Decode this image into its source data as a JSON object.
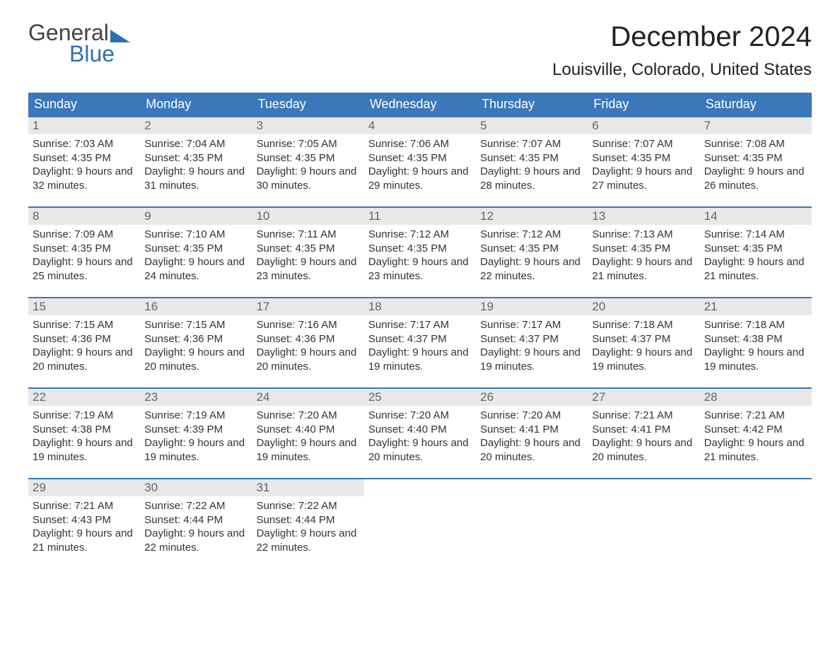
{
  "brand": {
    "line1": "General",
    "line2": "Blue"
  },
  "title": "December 2024",
  "location": "Louisville, Colorado, United States",
  "colors": {
    "header_bg": "#3a78b9",
    "header_text": "#ffffff",
    "daynum_bg": "#e8e8e8",
    "daynum_text": "#666666",
    "body_text": "#333333",
    "rule": "#3a78b9",
    "brand_blue": "#2d6fb4"
  },
  "days_of_week": [
    "Sunday",
    "Monday",
    "Tuesday",
    "Wednesday",
    "Thursday",
    "Friday",
    "Saturday"
  ],
  "weeks": [
    [
      {
        "n": "1",
        "sunrise": "7:03 AM",
        "sunset": "4:35 PM",
        "daylight": "9 hours and 32 minutes."
      },
      {
        "n": "2",
        "sunrise": "7:04 AM",
        "sunset": "4:35 PM",
        "daylight": "9 hours and 31 minutes."
      },
      {
        "n": "3",
        "sunrise": "7:05 AM",
        "sunset": "4:35 PM",
        "daylight": "9 hours and 30 minutes."
      },
      {
        "n": "4",
        "sunrise": "7:06 AM",
        "sunset": "4:35 PM",
        "daylight": "9 hours and 29 minutes."
      },
      {
        "n": "5",
        "sunrise": "7:07 AM",
        "sunset": "4:35 PM",
        "daylight": "9 hours and 28 minutes."
      },
      {
        "n": "6",
        "sunrise": "7:07 AM",
        "sunset": "4:35 PM",
        "daylight": "9 hours and 27 minutes."
      },
      {
        "n": "7",
        "sunrise": "7:08 AM",
        "sunset": "4:35 PM",
        "daylight": "9 hours and 26 minutes."
      }
    ],
    [
      {
        "n": "8",
        "sunrise": "7:09 AM",
        "sunset": "4:35 PM",
        "daylight": "9 hours and 25 minutes."
      },
      {
        "n": "9",
        "sunrise": "7:10 AM",
        "sunset": "4:35 PM",
        "daylight": "9 hours and 24 minutes."
      },
      {
        "n": "10",
        "sunrise": "7:11 AM",
        "sunset": "4:35 PM",
        "daylight": "9 hours and 23 minutes."
      },
      {
        "n": "11",
        "sunrise": "7:12 AM",
        "sunset": "4:35 PM",
        "daylight": "9 hours and 23 minutes."
      },
      {
        "n": "12",
        "sunrise": "7:12 AM",
        "sunset": "4:35 PM",
        "daylight": "9 hours and 22 minutes."
      },
      {
        "n": "13",
        "sunrise": "7:13 AM",
        "sunset": "4:35 PM",
        "daylight": "9 hours and 21 minutes."
      },
      {
        "n": "14",
        "sunrise": "7:14 AM",
        "sunset": "4:35 PM",
        "daylight": "9 hours and 21 minutes."
      }
    ],
    [
      {
        "n": "15",
        "sunrise": "7:15 AM",
        "sunset": "4:36 PM",
        "daylight": "9 hours and 20 minutes."
      },
      {
        "n": "16",
        "sunrise": "7:15 AM",
        "sunset": "4:36 PM",
        "daylight": "9 hours and 20 minutes."
      },
      {
        "n": "17",
        "sunrise": "7:16 AM",
        "sunset": "4:36 PM",
        "daylight": "9 hours and 20 minutes."
      },
      {
        "n": "18",
        "sunrise": "7:17 AM",
        "sunset": "4:37 PM",
        "daylight": "9 hours and 19 minutes."
      },
      {
        "n": "19",
        "sunrise": "7:17 AM",
        "sunset": "4:37 PM",
        "daylight": "9 hours and 19 minutes."
      },
      {
        "n": "20",
        "sunrise": "7:18 AM",
        "sunset": "4:37 PM",
        "daylight": "9 hours and 19 minutes."
      },
      {
        "n": "21",
        "sunrise": "7:18 AM",
        "sunset": "4:38 PM",
        "daylight": "9 hours and 19 minutes."
      }
    ],
    [
      {
        "n": "22",
        "sunrise": "7:19 AM",
        "sunset": "4:38 PM",
        "daylight": "9 hours and 19 minutes."
      },
      {
        "n": "23",
        "sunrise": "7:19 AM",
        "sunset": "4:39 PM",
        "daylight": "9 hours and 19 minutes."
      },
      {
        "n": "24",
        "sunrise": "7:20 AM",
        "sunset": "4:40 PM",
        "daylight": "9 hours and 19 minutes."
      },
      {
        "n": "25",
        "sunrise": "7:20 AM",
        "sunset": "4:40 PM",
        "daylight": "9 hours and 20 minutes."
      },
      {
        "n": "26",
        "sunrise": "7:20 AM",
        "sunset": "4:41 PM",
        "daylight": "9 hours and 20 minutes."
      },
      {
        "n": "27",
        "sunrise": "7:21 AM",
        "sunset": "4:41 PM",
        "daylight": "9 hours and 20 minutes."
      },
      {
        "n": "28",
        "sunrise": "7:21 AM",
        "sunset": "4:42 PM",
        "daylight": "9 hours and 21 minutes."
      }
    ],
    [
      {
        "n": "29",
        "sunrise": "7:21 AM",
        "sunset": "4:43 PM",
        "daylight": "9 hours and 21 minutes."
      },
      {
        "n": "30",
        "sunrise": "7:22 AM",
        "sunset": "4:44 PM",
        "daylight": "9 hours and 22 minutes."
      },
      {
        "n": "31",
        "sunrise": "7:22 AM",
        "sunset": "4:44 PM",
        "daylight": "9 hours and 22 minutes."
      },
      null,
      null,
      null,
      null
    ]
  ],
  "labels": {
    "sunrise": "Sunrise:",
    "sunset": "Sunset:",
    "daylight": "Daylight:"
  }
}
